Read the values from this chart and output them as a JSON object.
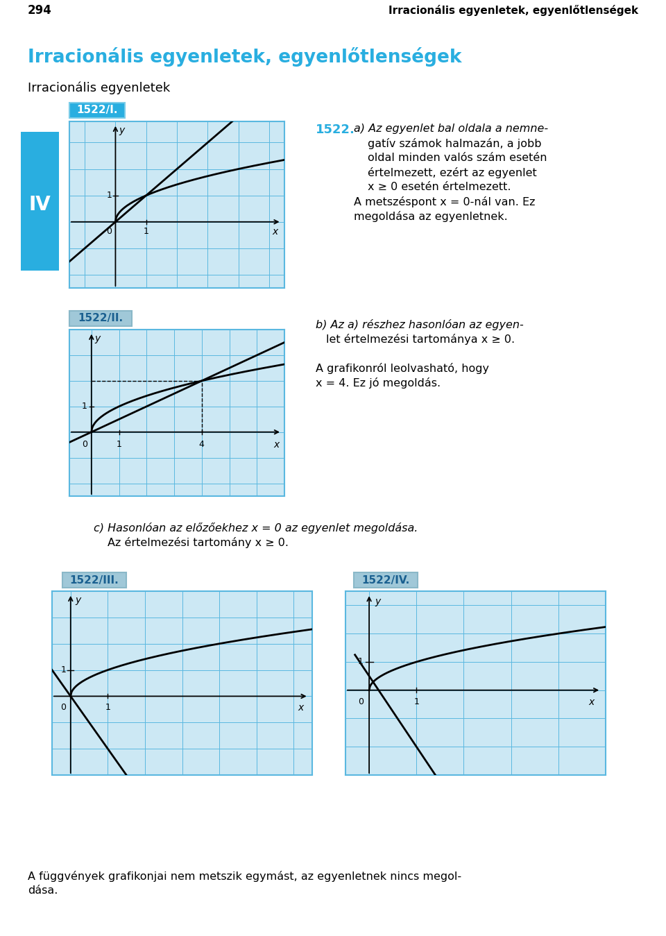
{
  "page_number": "294",
  "header_title": "Irracionális egyenletek, egyenlőtlenségek",
  "header_bg": "#b8dff0",
  "page_bg": "#ffffff",
  "blue_title": "Irracionális egyenletek, egyenlőtlenségek",
  "blue_title_color": "#29aee0",
  "subtitle": "Irracionális egyenletek",
  "label_I": "1522/I.",
  "label_I_color": "#ffffff",
  "label_I_bg": "#29aee0",
  "label_II": "1522/II.",
  "label_II_color": "#1a6090",
  "label_II_bg": "#a0c8d8",
  "label_III": "1522/III.",
  "label_III_color": "#1a6090",
  "label_III_bg": "#a0c8d8",
  "label_IV_box": "1522/IV.",
  "label_IV_box_color": "#1a6090",
  "label_IV_box_bg": "#a0c8d8",
  "IV_label": "IV",
  "IV_bg": "#29aee0",
  "graph_bg": "#cce8f4",
  "graph_border": "#5ab8e0",
  "grid_color": "#5ab8e0",
  "text_1522_color": "#29aee0",
  "text_color": "#000000",
  "text_a_line1": "1522.",
  "text_a_line2": "a) Az egyenlet bal oldala a nemne-",
  "text_a_line3": "gatív számok halmazán, a jobb",
  "text_a_line4": "oldal minden valós szám esetén",
  "text_a_line5": "értelmezett, ezért az egyenlet",
  "text_a_line6": "x ≥ 0 esetén értelmezett.",
  "text_a_line7": "A metszéspont x = 0-nál van. Ez",
  "text_a_line8": "megoldása az egyenletnek.",
  "text_b_line1": "b) Az a) részhez hasonlóan az egyen-",
  "text_b_line2": "let értelmezési tartománya x ≥ 0.",
  "text_b_line3": "A grafikonról leolvasható, hogy",
  "text_b_line4": "x = 4. Ez jó megoldás.",
  "text_c_line1": "c) Hasonlóan az előzőekhez x = 0 az egyenlet megoldása.",
  "text_c_line2": "Az értelmezési tartomány x ≥ 0.",
  "text_bottom_line1": "A függvények grafikonjai nem metszik egymást, az egyenletnek nincs megol-",
  "text_bottom_line2": "dása."
}
